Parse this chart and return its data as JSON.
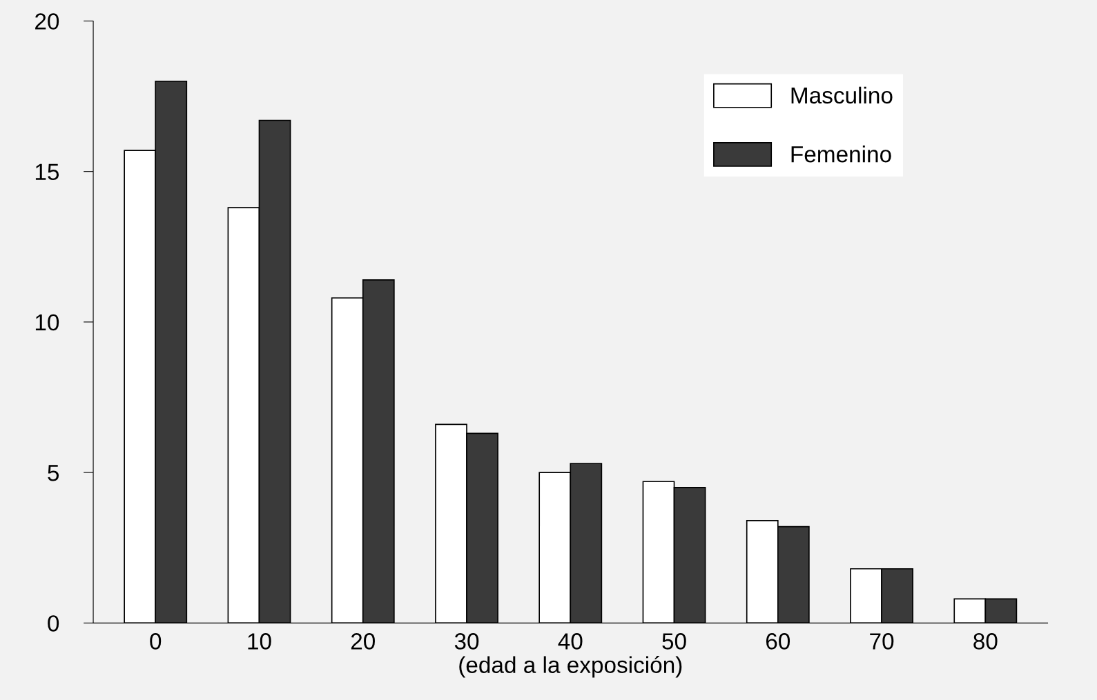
{
  "chart_data": {
    "type": "bar",
    "xlabel": "(edad a la exposición)",
    "categories": [
      "0",
      "10",
      "20",
      "30",
      "40",
      "50",
      "60",
      "70",
      "80"
    ],
    "series": [
      {
        "name": "Masculino",
        "color": "#ffffff",
        "values": [
          15.7,
          13.8,
          10.8,
          6.6,
          5.0,
          4.7,
          3.4,
          1.8,
          0.8
        ]
      },
      {
        "name": "Femenino",
        "color": "#3a3a3a",
        "values": [
          18.0,
          16.7,
          11.4,
          6.3,
          5.3,
          4.5,
          3.2,
          1.8,
          0.8
        ]
      }
    ],
    "ylim": [
      0,
      20
    ],
    "yticks": [
      0,
      5,
      10,
      15,
      20
    ],
    "legend": "top right",
    "grid": false
  }
}
